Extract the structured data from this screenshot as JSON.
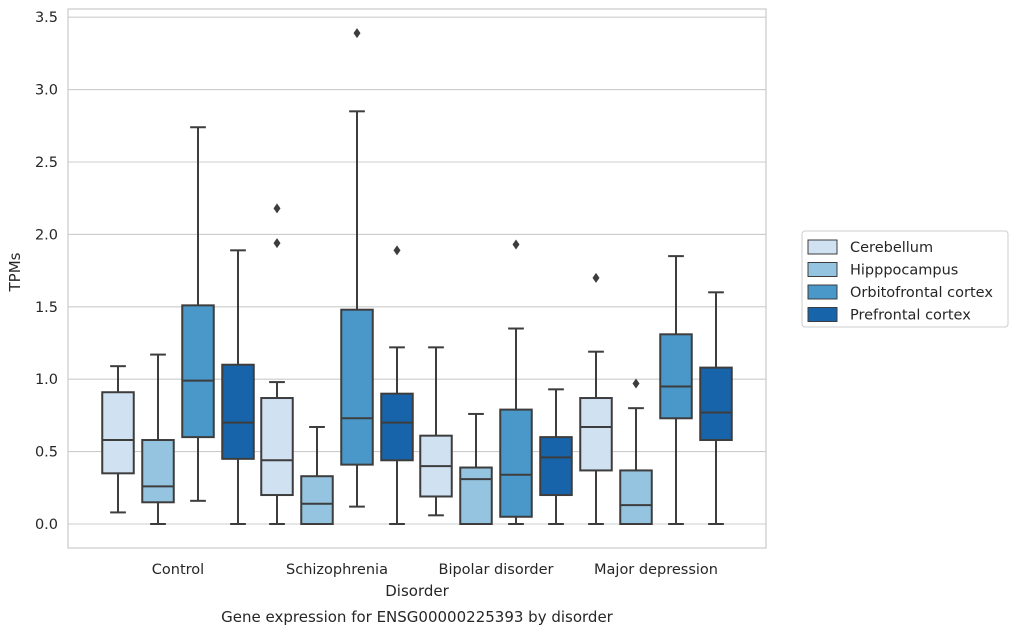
{
  "chart_data": {
    "type": "box",
    "title": "Gene expression for ENSG00000225393 by disorder",
    "xlabel": "Disorder",
    "ylabel": "TPMs",
    "ylim": [
      -0.16,
      3.56
    ],
    "yticks": [
      "0.0",
      "0.5",
      "1.0",
      "1.5",
      "2.0",
      "2.5",
      "3.0",
      "3.5"
    ],
    "grid": true,
    "legend_position": "right",
    "categories": [
      "Control",
      "Schizophrenia",
      "Bipolar disorder",
      "Major depression"
    ],
    "series": [
      {
        "name": "Cerebellum",
        "color": "#d0e1f2",
        "boxes": [
          {
            "whisker_low": 0.08,
            "q1": 0.35,
            "median": 0.58,
            "q3": 0.91,
            "whisker_high": 1.09,
            "outliers": []
          },
          {
            "whisker_low": 0.0,
            "q1": 0.2,
            "median": 0.44,
            "q3": 0.87,
            "whisker_high": 0.98,
            "outliers": [
              1.94,
              2.18
            ]
          },
          {
            "whisker_low": 0.06,
            "q1": 0.19,
            "median": 0.4,
            "q3": 0.61,
            "whisker_high": 1.22,
            "outliers": []
          },
          {
            "whisker_low": 0.0,
            "q1": 0.37,
            "median": 0.67,
            "q3": 0.87,
            "whisker_high": 1.19,
            "outliers": [
              1.7
            ]
          }
        ]
      },
      {
        "name": "Hipppocampus",
        "color": "#94c4df",
        "boxes": [
          {
            "whisker_low": 0.0,
            "q1": 0.15,
            "median": 0.26,
            "q3": 0.58,
            "whisker_high": 1.17,
            "outliers": []
          },
          {
            "whisker_low": 0.0,
            "q1": 0.0,
            "median": 0.14,
            "q3": 0.33,
            "whisker_high": 0.67,
            "outliers": []
          },
          {
            "whisker_low": 0.0,
            "q1": 0.0,
            "median": 0.31,
            "q3": 0.39,
            "whisker_high": 0.76,
            "outliers": []
          },
          {
            "whisker_low": 0.0,
            "q1": 0.0,
            "median": 0.13,
            "q3": 0.37,
            "whisker_high": 0.8,
            "outliers": [
              0.97
            ]
          }
        ]
      },
      {
        "name": "Orbitofrontal cortex",
        "color": "#4a98c9",
        "boxes": [
          {
            "whisker_low": 0.16,
            "q1": 0.6,
            "median": 0.99,
            "q3": 1.51,
            "whisker_high": 2.74,
            "outliers": []
          },
          {
            "whisker_low": 0.12,
            "q1": 0.41,
            "median": 0.73,
            "q3": 1.48,
            "whisker_high": 2.85,
            "outliers": [
              3.39
            ]
          },
          {
            "whisker_low": 0.0,
            "q1": 0.05,
            "median": 0.34,
            "q3": 0.79,
            "whisker_high": 1.35,
            "outliers": [
              1.93
            ]
          },
          {
            "whisker_low": 0.0,
            "q1": 0.73,
            "median": 0.95,
            "q3": 1.31,
            "whisker_high": 1.85,
            "outliers": []
          }
        ]
      },
      {
        "name": "Prefrontal cortex",
        "color": "#1764ab",
        "boxes": [
          {
            "whisker_low": 0.0,
            "q1": 0.45,
            "median": 0.7,
            "q3": 1.1,
            "whisker_high": 1.89,
            "outliers": []
          },
          {
            "whisker_low": 0.0,
            "q1": 0.44,
            "median": 0.7,
            "q3": 0.9,
            "whisker_high": 1.22,
            "outliers": [
              1.89
            ]
          },
          {
            "whisker_low": 0.0,
            "q1": 0.2,
            "median": 0.46,
            "q3": 0.6,
            "whisker_high": 0.93,
            "outliers": []
          },
          {
            "whisker_low": 0.0,
            "q1": 0.58,
            "median": 0.77,
            "q3": 1.08,
            "whisker_high": 1.6,
            "outliers": []
          }
        ]
      }
    ]
  }
}
